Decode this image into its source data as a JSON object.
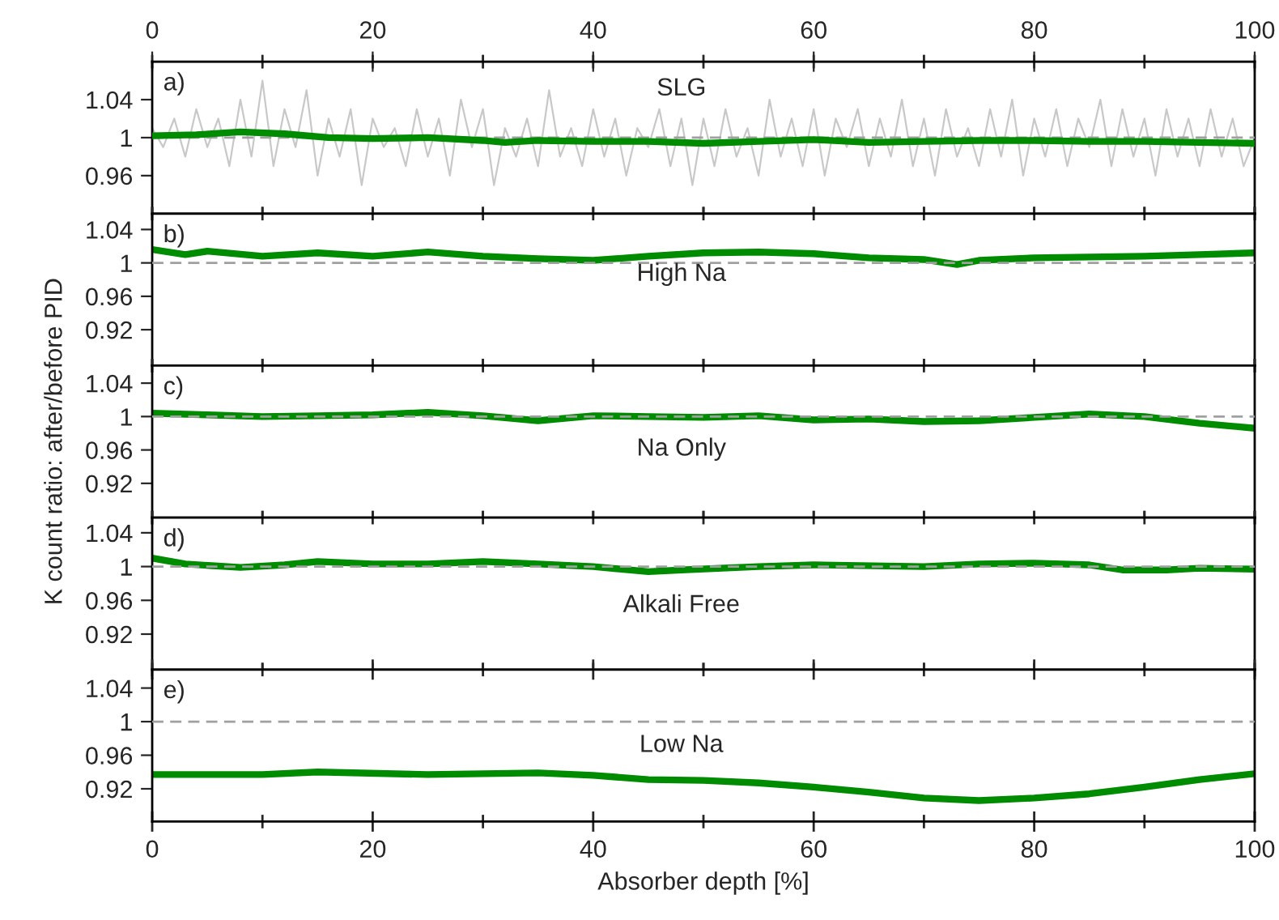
{
  "chart_data": [
    {
      "type": "line",
      "annotations": [
        "a)",
        "SLG"
      ],
      "xlim": [
        0,
        100
      ],
      "xticks": [
        {
          "value": 0,
          "label": null
        },
        {
          "value": 10,
          "label": null
        },
        {
          "value": 20,
          "label": null
        },
        {
          "value": 30,
          "label": null
        },
        {
          "value": 40,
          "label": null
        },
        {
          "value": 50,
          "label": null
        },
        {
          "value": 60,
          "label": null
        },
        {
          "value": 70,
          "label": null
        },
        {
          "value": 80,
          "label": null
        },
        {
          "value": 90,
          "label": null
        },
        {
          "value": 100,
          "label": null
        }
      ],
      "x2lim": [
        0,
        100
      ],
      "x2ticks": [
        0,
        {
          "value": 10,
          "label": null
        },
        20,
        {
          "value": 30,
          "label": null
        },
        40,
        {
          "value": 50,
          "label": null
        },
        60,
        {
          "value": 70,
          "label": null
        },
        80,
        {
          "value": 90,
          "label": null
        },
        100
      ],
      "ylim": [
        0.92,
        1.08
      ],
      "yticks": [
        0.96,
        1,
        1.04
      ],
      "tick_labels": "y",
      "grid": false,
      "legend": false,
      "marker": "none",
      "line_style": "solid",
      "ref_lines": [
        {
          "axis": "y",
          "value": 1,
          "label": null,
          "color": "#a0a0a0",
          "line_style": "dashed"
        }
      ],
      "series": [
        {
          "color": "#c8c8c8",
          "x": [
            0,
            1,
            2,
            3,
            4,
            5,
            6,
            7,
            8,
            9,
            10,
            11,
            12,
            13,
            14,
            15,
            16,
            17,
            18,
            19,
            20,
            21,
            22,
            23,
            24,
            25,
            26,
            27,
            28,
            29,
            30,
            31,
            32,
            33,
            34,
            35,
            36,
            37,
            38,
            39,
            40,
            41,
            42,
            43,
            44,
            45,
            46,
            47,
            48,
            49,
            50,
            51,
            52,
            53,
            54,
            55,
            56,
            57,
            58,
            59,
            60,
            61,
            62,
            63,
            64,
            65,
            66,
            67,
            68,
            69,
            70,
            71,
            72,
            73,
            74,
            75,
            76,
            77,
            78,
            79,
            80,
            81,
            82,
            83,
            84,
            85,
            86,
            87,
            88,
            89,
            90,
            91,
            92,
            93,
            94,
            95,
            96,
            97,
            98,
            99,
            100
          ],
          "values": [
            1.01,
            0.99,
            1.02,
            0.98,
            1.03,
            0.99,
            1.02,
            0.97,
            1.04,
            0.98,
            1.06,
            0.97,
            1.03,
            0.99,
            1.05,
            0.96,
            1.02,
            0.98,
            1.03,
            0.95,
            1.02,
            0.99,
            1.01,
            0.97,
            1.03,
            0.98,
            1.02,
            0.96,
            1.04,
            0.99,
            1.03,
            0.95,
            1.01,
            0.98,
            1.02,
            0.97,
            1.05,
            0.98,
            1.01,
            0.97,
            1.03,
            0.98,
            1.02,
            0.96,
            1.01,
            0.99,
            1.03,
            0.97,
            1.02,
            0.95,
            1.02,
            0.97,
            1.03,
            0.98,
            1.01,
            0.96,
            1.04,
            0.98,
            1.02,
            0.97,
            1.03,
            0.96,
            1.02,
            0.99,
            1.03,
            0.97,
            1.02,
            0.98,
            1.04,
            0.97,
            1.02,
            0.96,
            1.03,
            0.98,
            1.01,
            0.97,
            1.03,
            0.98,
            1.04,
            0.96,
            1.02,
            0.98,
            1.03,
            0.97,
            1.02,
            0.99,
            1.04,
            0.97,
            1.03,
            0.98,
            1.02,
            0.96,
            1.03,
            0.98,
            1.02,
            0.97,
            1.03,
            0.98,
            1.02,
            0.97,
            1.0
          ]
        },
        {
          "color": "#008c00",
          "x": [
            0,
            4,
            8,
            12,
            16,
            20,
            25,
            30,
            32,
            35,
            40,
            45,
            50,
            55,
            60,
            65,
            70,
            75,
            80,
            85,
            90,
            95,
            100
          ],
          "values": [
            1.002,
            1.003,
            1.006,
            1.004,
            1.0,
            0.999,
            1.0,
            0.997,
            0.995,
            0.997,
            0.996,
            0.996,
            0.994,
            0.996,
            0.998,
            0.995,
            0.996,
            0.997,
            0.997,
            0.996,
            0.996,
            0.995,
            0.994
          ]
        }
      ]
    },
    {
      "type": "line",
      "annotations": [
        "b)",
        "High Na"
      ],
      "xlim": [
        0,
        100
      ],
      "xticks": [
        {
          "value": 0,
          "label": null
        },
        {
          "value": 10,
          "label": null
        },
        {
          "value": 20,
          "label": null
        },
        {
          "value": 30,
          "label": null
        },
        {
          "value": 40,
          "label": null
        },
        {
          "value": 50,
          "label": null
        },
        {
          "value": 60,
          "label": null
        },
        {
          "value": 70,
          "label": null
        },
        {
          "value": 80,
          "label": null
        },
        {
          "value": 90,
          "label": null
        },
        {
          "value": 100,
          "label": null
        }
      ],
      "ylim": [
        0.877,
        1.059
      ],
      "yticks": [
        0.92,
        0.96,
        1,
        1.04
      ],
      "tick_labels": "y",
      "grid": false,
      "legend": false,
      "marker": "none",
      "line_style": "solid",
      "ref_lines": [
        {
          "axis": "y",
          "value": 1,
          "label": null,
          "color": "#a0a0a0",
          "line_style": "dashed"
        }
      ],
      "series": [
        {
          "color": "#008c00",
          "x": [
            0,
            3,
            5,
            10,
            15,
            20,
            25,
            30,
            35,
            40,
            45,
            50,
            55,
            60,
            65,
            70,
            73,
            75,
            80,
            85,
            90,
            95,
            100
          ],
          "values": [
            1.016,
            1.01,
            1.014,
            1.008,
            1.012,
            1.008,
            1.013,
            1.008,
            1.005,
            1.003,
            1.008,
            1.012,
            1.013,
            1.011,
            1.006,
            1.004,
            0.998,
            1.003,
            1.006,
            1.007,
            1.008,
            1.01,
            1.012
          ]
        }
      ]
    },
    {
      "type": "line",
      "annotations": [
        "c)",
        "Na Only"
      ],
      "ylabel": "K count ratio: after/before PID",
      "xlim": [
        0,
        100
      ],
      "xticks": [
        {
          "value": 0,
          "label": null
        },
        {
          "value": 10,
          "label": null
        },
        {
          "value": 20,
          "label": null
        },
        {
          "value": 30,
          "label": null
        },
        {
          "value": 40,
          "label": null
        },
        {
          "value": 50,
          "label": null
        },
        {
          "value": 60,
          "label": null
        },
        {
          "value": 70,
          "label": null
        },
        {
          "value": 80,
          "label": null
        },
        {
          "value": 90,
          "label": null
        },
        {
          "value": 100,
          "label": null
        }
      ],
      "ylim": [
        0.879,
        1.061
      ],
      "yticks": [
        0.92,
        0.96,
        1,
        1.04
      ],
      "tick_labels": "y",
      "grid": false,
      "legend": false,
      "marker": "none",
      "line_style": "solid",
      "ref_lines": [
        {
          "axis": "y",
          "value": 1,
          "label": null,
          "color": "#a0a0a0",
          "line_style": "dashed"
        }
      ],
      "series": [
        {
          "color": "#008c00",
          "x": [
            0,
            5,
            10,
            15,
            20,
            25,
            30,
            35,
            40,
            45,
            50,
            55,
            60,
            65,
            70,
            75,
            80,
            85,
            90,
            95,
            100
          ],
          "values": [
            1.004,
            1.002,
            1.0,
            1.001,
            1.002,
            1.005,
            1.001,
            0.995,
            1.001,
            1.0,
            0.999,
            1.001,
            0.996,
            0.997,
            0.994,
            0.995,
            0.999,
            1.003,
            1.0,
            0.992,
            0.986
          ]
        }
      ]
    },
    {
      "type": "line",
      "annotations": [
        "d)",
        "Alkali Free"
      ],
      "xlim": [
        0,
        100
      ],
      "xticks": [
        {
          "value": 0,
          "label": null
        },
        {
          "value": 10,
          "label": null
        },
        {
          "value": 20,
          "label": null
        },
        {
          "value": 30,
          "label": null
        },
        {
          "value": 40,
          "label": null
        },
        {
          "value": 50,
          "label": null
        },
        {
          "value": 60,
          "label": null
        },
        {
          "value": 70,
          "label": null
        },
        {
          "value": 80,
          "label": null
        },
        {
          "value": 90,
          "label": null
        },
        {
          "value": 100,
          "label": null
        }
      ],
      "ylim": [
        0.878,
        1.058
      ],
      "yticks": [
        0.92,
        0.96,
        1,
        1.04
      ],
      "tick_labels": "y",
      "grid": false,
      "legend": false,
      "marker": "none",
      "line_style": "solid",
      "ref_lines": [
        {
          "axis": "y",
          "value": 1,
          "label": null,
          "color": "#a0a0a0",
          "line_style": "dashed"
        }
      ],
      "series": [
        {
          "color": "#008c00",
          "x": [
            0,
            3,
            8,
            12,
            15,
            20,
            25,
            30,
            35,
            40,
            45,
            48,
            55,
            60,
            70,
            75,
            80,
            85,
            88,
            92,
            95,
            100
          ],
          "values": [
            1.01,
            1.003,
            0.999,
            1.002,
            1.006,
            1.003,
            1.003,
            1.006,
            1.003,
            1.0,
            0.994,
            0.996,
            1.0,
            1.002,
            1.0,
            1.003,
            1.004,
            1.002,
            0.996,
            0.996,
            0.998,
            0.997
          ]
        }
      ]
    },
    {
      "type": "line",
      "annotations": [
        "e)",
        "Low Na"
      ],
      "xlabel": "Absorber depth [%]",
      "xlim": [
        0,
        100
      ],
      "xticks": [
        0,
        {
          "value": 10,
          "label": null
        },
        20,
        {
          "value": 30,
          "label": null
        },
        40,
        {
          "value": 50,
          "label": null
        },
        60,
        {
          "value": 70,
          "label": null
        },
        80,
        {
          "value": 90,
          "label": null
        },
        100
      ],
      "ylim": [
        0.881,
        1.062
      ],
      "yticks": [
        0.92,
        0.96,
        1,
        1.04
      ],
      "grid": false,
      "legend": false,
      "marker": "none",
      "line_style": "solid",
      "ref_lines": [
        {
          "axis": "y",
          "value": 1,
          "label": null,
          "color": "#a0a0a0",
          "line_style": "dashed"
        }
      ],
      "series": [
        {
          "color": "#008c00",
          "x": [
            0,
            10,
            15,
            25,
            30,
            35,
            40,
            45,
            50,
            55,
            60,
            65,
            70,
            75,
            80,
            85,
            90,
            95,
            100
          ],
          "values": [
            0.937,
            0.937,
            0.94,
            0.937,
            0.938,
            0.939,
            0.936,
            0.931,
            0.93,
            0.927,
            0.922,
            0.916,
            0.909,
            0.906,
            0.909,
            0.914,
            0.922,
            0.931,
            0.938
          ]
        }
      ]
    }
  ]
}
